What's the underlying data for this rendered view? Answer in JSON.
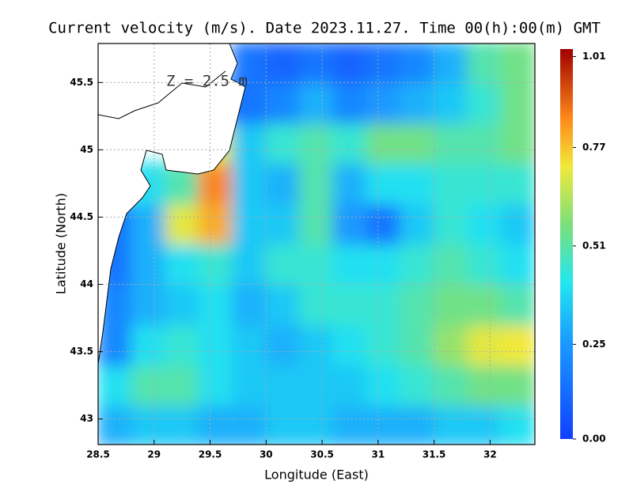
{
  "chart_data": {
    "type": "heatmap",
    "title": "Current velocity (m/s). Date 2023.11.27. Time 00(h):00(m) GMT",
    "annotation": "Z = 2.5 m",
    "x_label": "Longitude (East)",
    "y_label": "Latitude (North)",
    "xlim": [
      28.5,
      32.4
    ],
    "ylim": [
      42.81,
      45.79
    ],
    "xticks": [
      28.5,
      29,
      29.5,
      30,
      30.5,
      31,
      31.5,
      32
    ],
    "yticks": [
      43,
      43.5,
      44,
      44.5,
      45,
      45.5
    ],
    "grid": true,
    "x": [
      28.65,
      28.95,
      29.25,
      29.55,
      29.85,
      30.15,
      30.45,
      30.75,
      31.05,
      31.35,
      31.65,
      31.95,
      32.25
    ],
    "y": [
      42.95,
      43.25,
      43.55,
      43.85,
      44.15,
      44.45,
      44.75,
      45.05,
      45.35,
      45.65
    ],
    "values": [
      [
        0.3,
        0.35,
        0.35,
        0.3,
        0.3,
        0.35,
        0.35,
        0.3,
        0.3,
        0.3,
        0.35,
        0.35,
        0.4
      ],
      [
        0.4,
        0.5,
        0.5,
        0.4,
        0.35,
        0.35,
        0.35,
        0.35,
        0.4,
        0.45,
        0.5,
        0.55,
        0.55
      ],
      [
        0.2,
        0.4,
        0.45,
        0.4,
        0.35,
        0.3,
        0.35,
        0.4,
        0.45,
        0.5,
        0.6,
        0.7,
        0.72
      ],
      [
        0.2,
        0.3,
        0.35,
        0.4,
        0.3,
        0.35,
        0.45,
        0.45,
        0.45,
        0.5,
        0.55,
        0.55,
        0.5
      ],
      [
        0.15,
        0.3,
        0.4,
        0.45,
        0.35,
        0.45,
        0.45,
        0.4,
        0.4,
        0.45,
        0.5,
        0.45,
        0.4
      ],
      [
        0.15,
        0.3,
        0.7,
        0.8,
        0.35,
        0.35,
        0.5,
        0.25,
        0.15,
        0.35,
        0.45,
        0.4,
        0.35
      ],
      [
        null,
        0.4,
        0.5,
        0.85,
        0.35,
        0.3,
        0.5,
        0.3,
        0.4,
        0.4,
        0.45,
        0.45,
        0.45
      ],
      [
        null,
        null,
        null,
        0.7,
        0.35,
        0.45,
        0.5,
        0.45,
        0.55,
        0.55,
        0.5,
        0.5,
        0.55
      ],
      [
        null,
        null,
        null,
        0.2,
        0.15,
        0.2,
        0.3,
        0.2,
        0.25,
        0.3,
        0.35,
        0.45,
        0.55
      ],
      [
        null,
        null,
        null,
        null,
        0.15,
        0.1,
        0.15,
        0.1,
        0.15,
        0.2,
        0.3,
        0.5,
        0.55
      ]
    ],
    "clim": [
      0,
      1.03
    ],
    "cticks": [
      {
        "value": 0,
        "label": "0.00"
      },
      0.25,
      0.51,
      0.77,
      1.01
    ]
  }
}
